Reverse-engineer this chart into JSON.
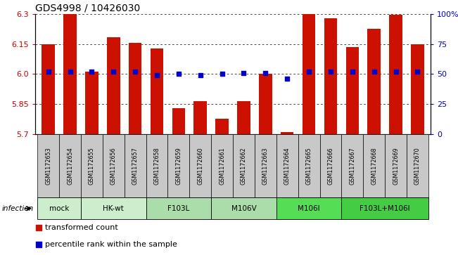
{
  "title": "GDS4998 / 10426030",
  "samples": [
    "GSM1172653",
    "GSM1172654",
    "GSM1172655",
    "GSM1172656",
    "GSM1172657",
    "GSM1172658",
    "GSM1172659",
    "GSM1172660",
    "GSM1172661",
    "GSM1172662",
    "GSM1172663",
    "GSM1172664",
    "GSM1172665",
    "GSM1172666",
    "GSM1172667",
    "GSM1172668",
    "GSM1172669",
    "GSM1172670"
  ],
  "bar_values": [
    6.15,
    6.3,
    6.01,
    6.185,
    6.155,
    6.128,
    5.83,
    5.865,
    5.775,
    5.865,
    6.0,
    5.71,
    6.3,
    6.28,
    6.135,
    6.225,
    6.295,
    6.147
  ],
  "percentile_values": [
    52,
    52,
    52,
    52,
    52,
    49,
    50,
    49,
    50,
    51,
    51,
    46,
    52,
    52,
    52,
    52,
    52,
    52
  ],
  "ylim_left": [
    5.7,
    6.3
  ],
  "ylim_right": [
    0,
    100
  ],
  "yticks_left": [
    5.7,
    5.85,
    6.0,
    6.15,
    6.3
  ],
  "yticks_right": [
    0,
    25,
    50,
    75,
    100
  ],
  "ytick_labels_right": [
    "0",
    "25",
    "50",
    "75",
    "100%"
  ],
  "bar_color": "#cc1100",
  "dot_color": "#0000cc",
  "groups": [
    {
      "label": "mock",
      "start": 0,
      "end": 2,
      "color": "#cceecc"
    },
    {
      "label": "HK-wt",
      "start": 2,
      "end": 5,
      "color": "#cceecc"
    },
    {
      "label": "F103L",
      "start": 5,
      "end": 8,
      "color": "#aaddaa"
    },
    {
      "label": "M106V",
      "start": 8,
      "end": 11,
      "color": "#aaddaa"
    },
    {
      "label": "M106I",
      "start": 11,
      "end": 14,
      "color": "#55dd55"
    },
    {
      "label": "F103L+M106I",
      "start": 14,
      "end": 18,
      "color": "#44cc44"
    }
  ],
  "infection_label": "infection",
  "legend_bar_label": "transformed count",
  "legend_dot_label": "percentile rank within the sample",
  "left_color": "#cc0000",
  "right_color": "#0000cc",
  "sample_box_color": "#c8c8c8",
  "title_fontsize": 10,
  "axis_fontsize": 8,
  "sample_fontsize": 5.8,
  "group_fontsize": 7.5,
  "legend_fontsize": 8
}
